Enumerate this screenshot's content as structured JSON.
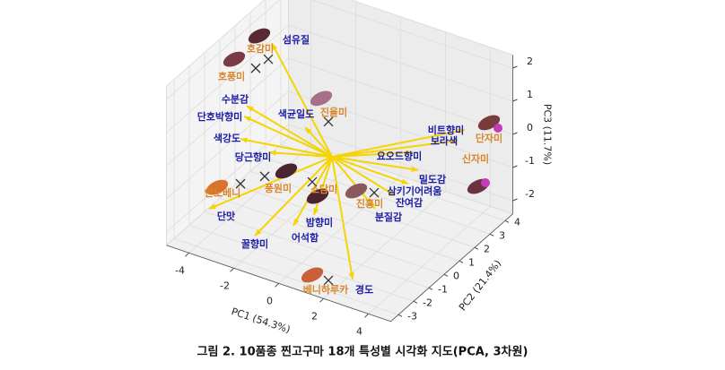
{
  "chart_data": {
    "type": "biplot3d",
    "caption": "그림 2. 10품종 찐고구마 18개 특성별 시각화 지도(PCA, 3차원)",
    "xlabel": "PC1 (54.3%)",
    "ylabel": "PC2 (21.4%)",
    "zlabel": "PC3 (11.7%)",
    "xlim": [
      -5,
      5
    ],
    "ylim": [
      -3.5,
      4.5
    ],
    "zlim": [
      -2.4,
      2.4
    ],
    "xticks": [
      -4,
      -2,
      0,
      2,
      4
    ],
    "yticks": [
      -3,
      -2,
      -1,
      0,
      1,
      2,
      3,
      4
    ],
    "zticks": [
      -2,
      -1,
      0,
      1,
      2
    ],
    "grid": true,
    "scores": {
      "color": "#d9862b",
      "names": [
        "호감미",
        "호풍미",
        "진율미",
        "단자미",
        "신자미",
        "안노베니",
        "풍원미",
        "소담미",
        "진홍미",
        "베니하루카"
      ],
      "x": [
        -3.52,
        -3.74,
        -0.84,
        4.68,
        4.12,
        -3.4,
        -3,
        -0.2,
        1.88,
        1.88
      ],
      "y": [
        1,
        0.5,
        1,
        4,
        4,
        -1,
        0,
        -1,
        0,
        -3
      ],
      "z": [
        1.73,
        1.61,
        0.46,
        0.32,
        -1.46,
        -1.19,
        -1.28,
        -0.4,
        -0.65,
        -2.08
      ],
      "markers": [
        "x",
        "x",
        "x",
        "o",
        "o",
        "x",
        "x",
        "x",
        "x",
        "x"
      ]
    },
    "loadings": {
      "color": "#1c1ca6",
      "arrow_color": "#f5d400",
      "names": [
        "섬유질",
        "수분감",
        "단호박향미",
        "색강도",
        "당근향미",
        "색균일도",
        "단맛",
        "꿀향미",
        "어석함",
        "밤향미",
        "경도",
        "분질감",
        "잔여감",
        "삼키기어려움",
        "밀도감",
        "요오드향미",
        "보라색",
        "비트향미"
      ],
      "x": [
        -3.36,
        -3.8,
        -3.92,
        -4.08,
        -2.8,
        -1.2,
        -4.8,
        -2.08,
        -0.36,
        0.56,
        2.96,
        2.6,
        3.48,
        3.4,
        3.84,
        2.92,
        4.24,
        4.56
      ],
      "y": [
        1,
        0,
        0,
        0,
        0,
        0,
        -1,
        -2,
        -2,
        -2,
        -3,
        -1,
        -1,
        0,
        0,
        1,
        2,
        2
      ],
      "z": [
        2.25,
        0.66,
        0.32,
        -0.4,
        -0.51,
        0.62,
        -2.27,
        -2.05,
        -1.35,
        -0.82,
        -1.8,
        -0.56,
        0.04,
        -0.03,
        0.48,
        0.4,
        0.65,
        1.05
      ]
    }
  }
}
